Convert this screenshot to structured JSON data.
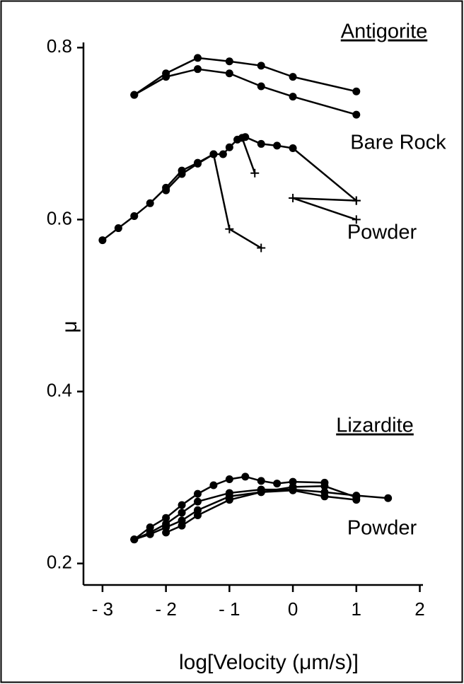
{
  "chart_data": {
    "type": "line",
    "xlabel": "log[Velocity   (μm/s)]",
    "ylabel": "μ",
    "annotations": [
      "Antigorite",
      "Bare Rock",
      "Powder",
      "Lizardite",
      "Powder"
    ],
    "xlim": [
      -3.3,
      2.05
    ],
    "ylim": [
      0.175,
      0.806
    ],
    "xticks": [
      {
        "value": -3,
        "label": "- 3"
      },
      {
        "value": -2,
        "label": "- 2"
      },
      {
        "value": -1,
        "label": "- 1"
      },
      0,
      1,
      2
    ],
    "yticks": [
      0.2,
      0.4,
      0.6,
      0.8
    ],
    "color": "#000000",
    "series": [
      {
        "x": [
          -2.5,
          -2,
          -1.5,
          -1,
          -0.5,
          0,
          1
        ],
        "values": [
          0.745,
          0.77,
          0.788,
          0.784,
          0.779,
          0.766,
          0.749
        ],
        "markers": [
          "o",
          "o",
          "o",
          "o",
          "o",
          "o",
          "o"
        ]
      },
      {
        "x": [
          -2.5,
          -2,
          -1.5,
          -1,
          -0.5,
          0,
          1
        ],
        "values": [
          0.745,
          0.766,
          0.775,
          0.77,
          0.755,
          0.743,
          0.722
        ],
        "markers": [
          "o",
          "o",
          "o",
          "o",
          "o",
          "o",
          "o"
        ]
      },
      {
        "x": [
          -3,
          -2.75,
          -2.5,
          -2.25,
          -2,
          -1.75,
          -1.5,
          -1.25,
          -1.1,
          -1,
          -0.875,
          -0.75,
          -0.5,
          -0.25,
          0,
          1
        ],
        "values": [
          0.576,
          0.59,
          0.604,
          0.619,
          0.637,
          0.657,
          0.666,
          0.676,
          0.676,
          0.684,
          0.693,
          0.696,
          0.688,
          0.686,
          0.683,
          0.622
        ],
        "markers": [
          "o",
          "o",
          "o",
          "o",
          "o",
          "o",
          "o",
          "o",
          "o",
          "o",
          "o",
          "o",
          "o",
          "o",
          "o",
          "+"
        ]
      },
      {
        "x": [
          -2,
          -1.75,
          -1.5,
          -1.25,
          -1,
          -0.5
        ],
        "values": [
          0.634,
          0.653,
          0.665,
          0.676,
          0.589,
          0.567
        ],
        "markers": [
          "o",
          "o",
          "o",
          "o",
          "+",
          "+"
        ]
      },
      {
        "x": [
          -0.8,
          -0.6
        ],
        "values": [
          0.695,
          0.654
        ],
        "markers": [
          "o",
          "+"
        ]
      },
      {
        "x": [
          1,
          0,
          1
        ],
        "values": [
          0.622,
          0.625,
          0.6
        ],
        "markers": [
          "+",
          "+",
          "+"
        ]
      },
      {
        "x": [
          -2.5,
          -2.25,
          -2,
          -1.75,
          -1.5,
          -1.25,
          -1,
          -0.75,
          -0.5,
          -0.25,
          0,
          0.5
        ],
        "values": [
          0.228,
          0.242,
          0.253,
          0.268,
          0.281,
          0.291,
          0.298,
          0.301,
          0.296,
          0.293,
          0.295,
          0.294
        ],
        "markers": [
          "o",
          "o",
          "o",
          "o",
          "o",
          "o",
          "o",
          "o",
          "o",
          "o",
          "o",
          "o"
        ]
      },
      {
        "x": [
          -2.5,
          -2.25,
          -2,
          -1.75,
          -1.5,
          -1,
          -0.5,
          0,
          0.5,
          1,
          1.5
        ],
        "values": [
          0.228,
          0.236,
          0.246,
          0.259,
          0.272,
          0.282,
          0.286,
          0.286,
          0.283,
          0.279,
          0.276
        ],
        "markers": [
          "o",
          "o",
          "o",
          "o",
          "o",
          "o",
          "o",
          "o",
          "o",
          "o",
          "o"
        ]
      },
      {
        "x": [
          -2,
          -1.75,
          -1.5,
          -1,
          -0.5,
          0,
          0.5,
          1
        ],
        "values": [
          0.236,
          0.244,
          0.256,
          0.274,
          0.283,
          0.285,
          0.278,
          0.274
        ],
        "markers": [
          "o",
          "o",
          "o",
          "o",
          "o",
          "o",
          "o",
          "o"
        ]
      },
      {
        "x": [
          -2.5,
          -2.25,
          -2,
          -1.75,
          -1.5,
          -1,
          -0.5,
          0,
          0.5,
          1
        ],
        "values": [
          0.228,
          0.234,
          0.242,
          0.25,
          0.262,
          0.278,
          0.283,
          0.289,
          0.29,
          0.277
        ],
        "markers": [
          "o",
          "o",
          "o",
          "o",
          "o",
          "o",
          "o",
          "o",
          "o",
          "o"
        ]
      }
    ]
  }
}
